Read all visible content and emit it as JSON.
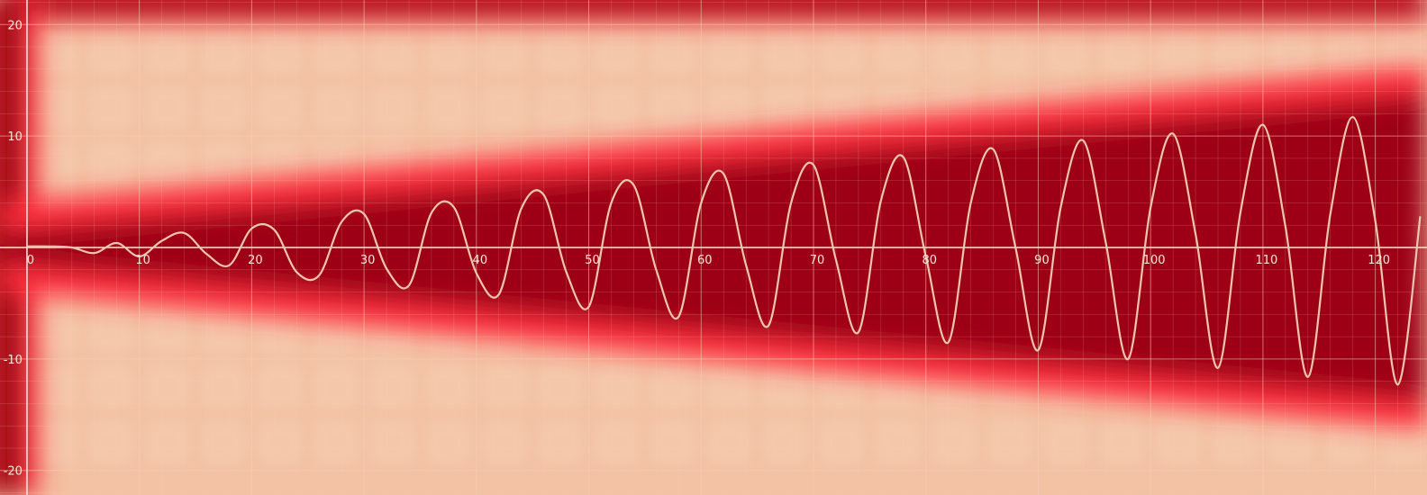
{
  "chart_data": {
    "type": "line",
    "title": "",
    "xlabel": "",
    "ylabel": "",
    "x_range": [
      -2.4,
      124.6
    ],
    "y_range": [
      -22.2,
      22.2
    ],
    "grid": true,
    "x_ticks": [
      0,
      10,
      20,
      30,
      40,
      50,
      60,
      70,
      80,
      90,
      100,
      110,
      120
    ],
    "x_tick_labels": [
      "0",
      "10",
      "20",
      "30",
      "40",
      "50",
      "60",
      "70",
      "80",
      "90",
      "100",
      "110",
      "120"
    ],
    "y_ticks": [
      20,
      10,
      -10,
      -20
    ],
    "y_tick_labels": [
      "20",
      "10",
      "-10",
      "-20"
    ],
    "background_heatmap": {
      "description_colors": [
        "#f3c1a3",
        "#ff2d3c",
        "#8c0010"
      ]
    },
    "series": [
      {
        "x": [
          0,
          2,
          4,
          6,
          8,
          10,
          12,
          14,
          16,
          18,
          20,
          22,
          24,
          26,
          28,
          30,
          32,
          34,
          36,
          38,
          40,
          42,
          44,
          46,
          48,
          50,
          52,
          54,
          56,
          58,
          60,
          62,
          64,
          66,
          68,
          70,
          72,
          74,
          76,
          78,
          80,
          82,
          84,
          86,
          88,
          90,
          92,
          94,
          96,
          98,
          100,
          102,
          104,
          106,
          108,
          110,
          112,
          114,
          116,
          118,
          120,
          122,
          124
        ],
        "y": [
          0.1,
          0.1,
          0.0,
          -0.5,
          0.4,
          -0.8,
          0.6,
          1.3,
          -0.6,
          -1.6,
          1.7,
          1.6,
          -2.2,
          -2.5,
          2.3,
          3.0,
          -1.9,
          -3.4,
          3.1,
          3.6,
          -2.3,
          -4.2,
          3.5,
          4.7,
          -2.2,
          -5.3,
          4.0,
          5.6,
          -2.0,
          -6.2,
          4.0,
          6.6,
          -1.6,
          -7.0,
          4.0,
          7.4,
          -1.1,
          -7.6,
          4.2,
          8.1,
          -0.8,
          -8.5,
          4.0,
          8.8,
          -0.1,
          -9.2,
          3.6,
          9.6,
          0.5,
          -10.0,
          3.6,
          10.2,
          1.2,
          -10.8,
          3.2,
          11.0,
          1.9,
          -11.6,
          3.0,
          11.7,
          2.4,
          -12.3,
          2.8
        ]
      }
    ],
    "colors": {
      "line": "#ecc7ae",
      "axis": "#f7e4d6",
      "grid": "#f6cfb8",
      "tick_text": "#f8e6da"
    }
  }
}
